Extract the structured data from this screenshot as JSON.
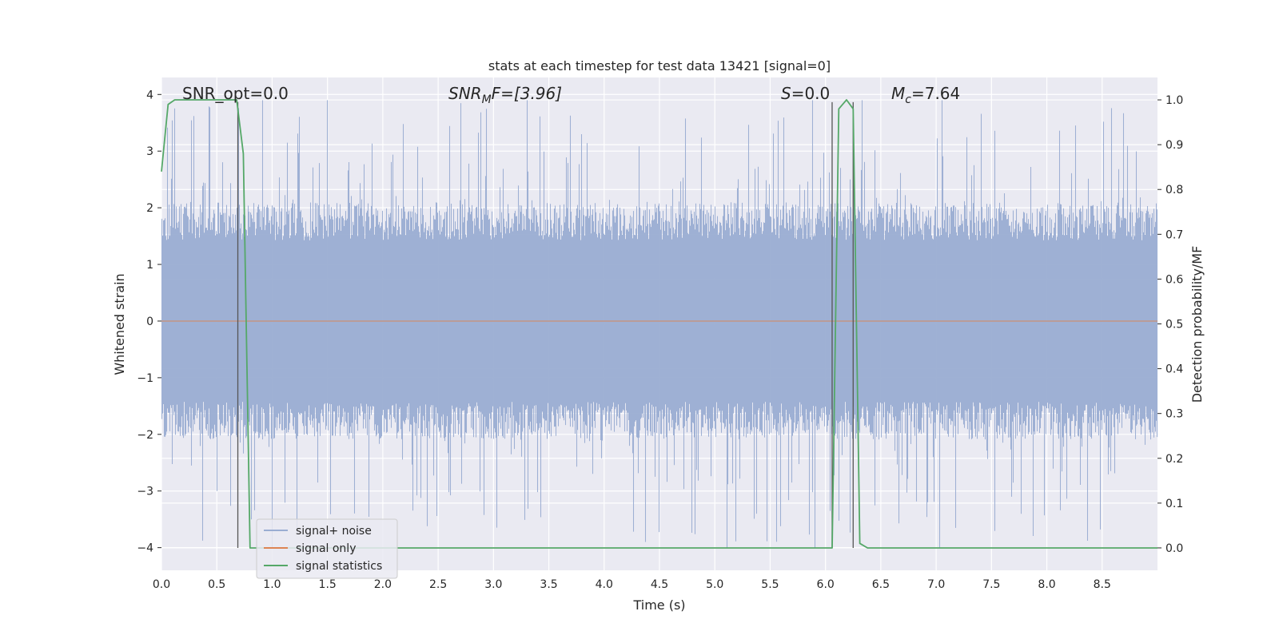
{
  "chart_data": {
    "type": "line",
    "title": "stats at each timestep for test data 13421 [signal=0]",
    "xlabel": "Time (s)",
    "ylabel_left": "Whitened strain",
    "ylabel_right": "Detection probability/MF",
    "xlim": [
      0.0,
      9.0
    ],
    "ylim_left": [
      -4.4,
      4.3
    ],
    "ylim_right": [
      -0.05,
      1.05
    ],
    "x_ticks": [
      "0.0",
      "0.5",
      "1.0",
      "1.5",
      "2.0",
      "2.5",
      "3.0",
      "3.5",
      "4.0",
      "4.5",
      "5.0",
      "5.5",
      "6.0",
      "6.5",
      "7.0",
      "7.5",
      "8.0",
      "8.5"
    ],
    "y_ticks_left": [
      "−4",
      "−3",
      "−2",
      "−1",
      "0",
      "1",
      "2",
      "3",
      "4"
    ],
    "y_ticks_right": [
      "0.0",
      "0.1",
      "0.2",
      "0.3",
      "0.4",
      "0.5",
      "0.6",
      "0.7",
      "0.8",
      "0.9",
      "1.0"
    ],
    "grid": true,
    "legend_position": "lower-left",
    "annotations": {
      "snr_opt": "SNR_opt=0.0",
      "snr_mf": "SNR",
      "snr_mf_sub": "M",
      "snr_mf_tail": "F=[3.96]",
      "s_label": "S",
      "s_tail": "=0.0",
      "mc_label": "M",
      "mc_sub": "c",
      "mc_tail": "=7.64"
    },
    "series": [
      {
        "name": "signal+ noise",
        "color": "#9aadd2",
        "description_values": {
          "envelope_upper_typical": 1.9,
          "envelope_lower_typical": -1.9,
          "max_peak": 3.9,
          "min_peak": -4.0
        }
      },
      {
        "name": "signal only",
        "color": "#dd8452",
        "constant_value": 0.0
      },
      {
        "name": "signal statistics",
        "color": "#55a868",
        "axis": "right",
        "x": [
          0.0,
          0.06,
          0.12,
          0.2,
          0.4,
          0.6,
          0.68,
          0.74,
          0.8,
          1.0,
          2.0,
          3.0,
          4.0,
          5.0,
          6.0,
          6.06,
          6.12,
          6.19,
          6.25,
          6.31,
          6.38,
          7.0,
          8.0,
          9.0
        ],
        "y": [
          0.84,
          0.99,
          1.0,
          1.0,
          1.0,
          1.0,
          1.0,
          0.88,
          0.0,
          0.0,
          0.0,
          0.0,
          0.0,
          0.0,
          0.0,
          0.0,
          0.98,
          1.0,
          0.98,
          0.01,
          0.0,
          0.0,
          0.0,
          0.0
        ]
      }
    ],
    "vertical_lines_x": [
      0.69,
      6.06,
      6.25
    ]
  }
}
